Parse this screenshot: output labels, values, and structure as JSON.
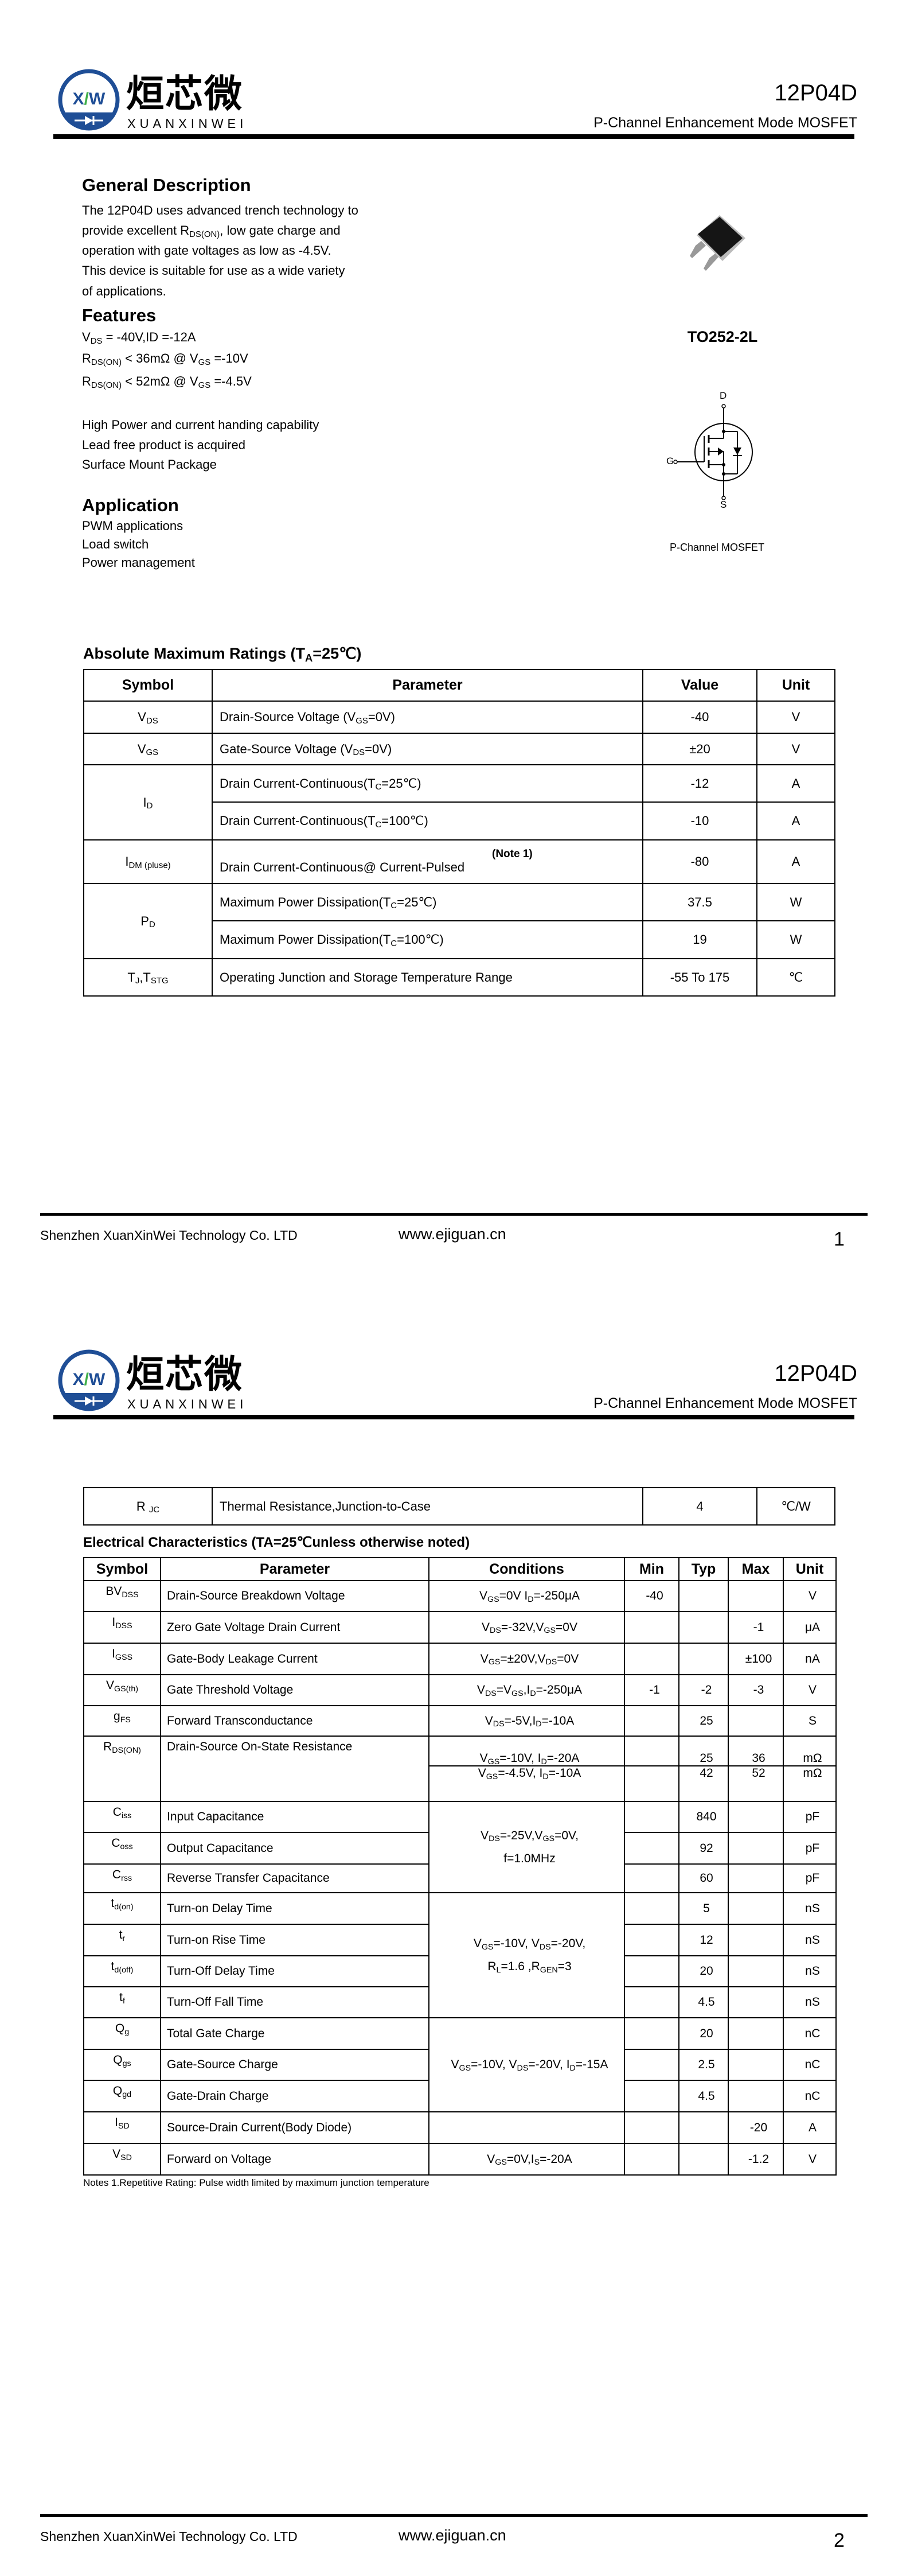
{
  "colors": {
    "brand_blue": "#1f4e96",
    "brand_green": "#3fae49",
    "text": "#000000"
  },
  "header": {
    "logo_cn": "烜芯微",
    "logo_en": "XUANXINWEI",
    "logo_mark": "XW",
    "part_number": "12P04D",
    "subtitle": "P-Channel Enhancement Mode MOSFET"
  },
  "footer": {
    "company": "Shenzhen XuanXinWei Technology Co. LTD",
    "website": "www.ejiguan.cn",
    "page1": "1",
    "page2": "2"
  },
  "general": {
    "title": "General Description",
    "lines": [
      [
        "The  12P04D         uses advanced trench technology to"
      ],
      [
        " provide excellent R",
        {
          "sub": "DS(ON)"
        },
        ", low gate charge and"
      ],
      [
        "operation with gate voltages as low as -4.5V."
      ],
      [
        "This device is suitable for use as a wide variety"
      ],
      [
        "of applications."
      ]
    ]
  },
  "features": {
    "title": "Features",
    "specs": [
      [
        "V",
        {
          "sub": "DS"
        },
        " = -40V,ID =-12A"
      ],
      [
        "R",
        {
          "sub": "DS(ON)"
        },
        " < 36mΩ @ V",
        {
          "sub": "GS"
        },
        " =-10V"
      ],
      [
        "R",
        {
          "sub": "DS(ON)"
        },
        " < 52mΩ @ V",
        {
          "sub": "GS"
        },
        " =-4.5V"
      ]
    ],
    "items": [
      "High Power and current handing capability",
      "Lead free product is acquired",
      "Surface Mount Package"
    ]
  },
  "application": {
    "title": "Application",
    "items": [
      "PWM applications",
      "Load switch",
      "Power management"
    ]
  },
  "package": {
    "name": "TO252-2L",
    "pin_d": "D",
    "pin_g": "G",
    "pin_s": "S",
    "symbol_label": "P-Channel MOSFET"
  },
  "abs_max": {
    "title": [
      "Absolute Maximum Ratings (T",
      {
        "sub": "A"
      },
      "=25℃)"
    ],
    "headers": [
      "Symbol",
      "Parameter",
      "Value",
      "Unit"
    ],
    "rows": [
      {
        "symbol": [
          "V",
          {
            "sub": "DS"
          }
        ],
        "parameter": [
          "Drain-Source Voltage (V",
          {
            "sub": "GS"
          },
          "=0V)"
        ],
        "value": "-40",
        "unit": "V"
      },
      {
        "symbol": [
          "V",
          {
            "sub": "GS"
          }
        ],
        "parameter": [
          "Gate-Source Voltage (V",
          {
            "sub": "DS"
          },
          "=0V)"
        ],
        "value": "±20",
        "unit": "V"
      },
      {
        "symbol": [
          "I",
          {
            "sub": "D"
          }
        ],
        "symbol_rows": 2,
        "parameter": [
          "Drain Current-Continuous(T",
          {
            "sub": "C"
          },
          "=25℃)"
        ],
        "value": "-12",
        "unit": "A"
      },
      {
        "parameter": [
          "Drain Current-Continuous(T",
          {
            "sub": "C"
          },
          "=100℃)"
        ],
        "value": "-10",
        "unit": "A"
      },
      {
        "symbol": [
          "I",
          {
            "sub": "DM (pluse)"
          }
        ],
        "note": "(Note 1)",
        "parameter": [
          "Drain Current-Continuous@ Current-Pulsed"
        ],
        "value": "-80",
        "unit": "A"
      },
      {
        "symbol": [
          "P",
          {
            "sub": "D"
          }
        ],
        "symbol_rows": 2,
        "parameter": [
          "Maximum Power Dissipation(T",
          {
            "sub": "C"
          },
          "=25℃)"
        ],
        "value": "37.5",
        "unit": "W"
      },
      {
        "parameter": [
          "Maximum Power Dissipation(T",
          {
            "sub": "C"
          },
          "=100℃)"
        ],
        "value": "19",
        "unit": "W"
      },
      {
        "symbol": [
          "T",
          {
            "sub": "J"
          },
          ",T",
          {
            "sub": "STG"
          }
        ],
        "parameter": [
          "Operating Junction and Storage Temperature Range"
        ],
        "value": "-55 To 175",
        "unit": "℃"
      }
    ]
  },
  "thermal": {
    "symbol": [
      "R ",
      {
        "sub": " JC"
      }
    ],
    "parameter": [
      "Thermal Resistance,Junction-to-Case"
    ],
    "value": "4",
    "unit": "℃/W"
  },
  "electrical": {
    "title": "Electrical Characteristics (TA=25℃unless otherwise noted)",
    "headers": [
      "Symbol",
      "Parameter",
      "Conditions",
      "Min",
      "Typ",
      "Max",
      "Unit"
    ],
    "rows": [
      {
        "symbol": [
          "BV",
          {
            "sub": "DSS"
          }
        ],
        "parameter": "Drain-Source Breakdown Voltage",
        "conditions": [
          "V",
          {
            "sub": "GS"
          },
          "=0V I",
          {
            "sub": "D"
          },
          "=-250μA"
        ],
        "min": "-40",
        "typ": "",
        "max": "",
        "unit": "V"
      },
      {
        "symbol": [
          "I",
          {
            "sub": "DSS"
          }
        ],
        "parameter": "Zero Gate Voltage Drain Current",
        "conditions": [
          "V",
          {
            "sub": "DS"
          },
          "=-32V,V",
          {
            "sub": "GS"
          },
          "=0V"
        ],
        "min": "",
        "typ": "",
        "max": "-1",
        "unit": "μA"
      },
      {
        "symbol": [
          "I",
          {
            "sub": "GSS"
          }
        ],
        "parameter": "Gate-Body Leakage Current",
        "conditions": [
          "V",
          {
            "sub": "GS"
          },
          "=±20V,V",
          {
            "sub": "DS"
          },
          "=0V"
        ],
        "min": "",
        "typ": "",
        "max": "±100",
        "unit": "nA"
      },
      {
        "symbol": [
          "V",
          {
            "sub": "GS(th)"
          }
        ],
        "parameter": "Gate Threshold Voltage",
        "conditions": [
          "V",
          {
            "sub": "DS"
          },
          "=V",
          {
            "sub": "GS"
          },
          ",I",
          {
            "sub": "D"
          },
          "=-250μA"
        ],
        "min": "-1",
        "typ": "-2",
        "max": "-3",
        "unit": "V"
      },
      {
        "symbol": [
          "g",
          {
            "sub": "FS"
          }
        ],
        "parameter": "Forward Transconductance",
        "conditions": [
          "V",
          {
            "sub": "DS"
          },
          "=-5V,I",
          {
            "sub": "D"
          },
          "=-10A"
        ],
        "min": "",
        "typ": "25",
        "max": "",
        "unit": "S"
      },
      {
        "symbol": [
          "R",
          {
            "sub": "DS(ON)"
          }
        ],
        "parameter": "Drain-Source On-State Resistance",
        "sub_rows": [
          {
            "conditions": [
              "V",
              {
                "sub": "GS"
              },
              "=-10V, I",
              {
                "sub": "D"
              },
              "=-20A"
            ],
            "min": "",
            "typ": "25",
            "max": "36",
            "unit": "mΩ"
          },
          {
            "conditions": [
              "V",
              {
                "sub": "GS"
              },
              "=-4.5V, I",
              {
                "sub": "D"
              },
              "=-10A"
            ],
            "min": "",
            "typ": "42",
            "max": "52",
            "unit": "mΩ"
          }
        ]
      },
      {
        "symbol": [
          "C",
          {
            "sub": "iss"
          }
        ],
        "parameter": "Input Capacitance",
        "conditions": [
          "V",
          {
            "sub": "DS"
          },
          "=-25V,V",
          {
            "sub": "GS"
          },
          "=0V,",
          {
            "br": true
          },
          "f=1.0MHz"
        ],
        "cond_rows": 3,
        "min": "",
        "typ": "840",
        "max": "",
        "unit": "pF"
      },
      {
        "symbol": [
          "C",
          {
            "sub": "oss"
          }
        ],
        "parameter": "Output Capacitance",
        "min": "",
        "typ": "92",
        "max": "",
        "unit": "pF"
      },
      {
        "symbol": [
          "C",
          {
            "sub": "rss"
          }
        ],
        "parameter": "Reverse Transfer Capacitance",
        "min": "",
        "typ": "60",
        "max": "",
        "unit": "pF"
      },
      {
        "symbol": [
          "t",
          {
            "sub": "d(on)"
          }
        ],
        "parameter": "Turn-on Delay Time",
        "conditions": [
          "V",
          {
            "sub": "GS"
          },
          "=-10V, V",
          {
            "sub": "DS"
          },
          "=-20V,",
          {
            "br": true
          },
          "R",
          {
            "sub": "L"
          },
          "=1.6    ,R",
          {
            "sub": "GEN"
          },
          "=3"
        ],
        "cond_rows": 4,
        "min": "",
        "typ": "5",
        "max": "",
        "unit": "nS"
      },
      {
        "symbol": [
          "t",
          {
            "sub": "r"
          }
        ],
        "parameter": "Turn-on Rise Time",
        "min": "",
        "typ": "12",
        "max": "",
        "unit": "nS"
      },
      {
        "symbol": [
          "t",
          {
            "sub": "d(off)"
          }
        ],
        "parameter": "Turn-Off Delay Time",
        "min": "",
        "typ": "20",
        "max": "",
        "unit": "nS"
      },
      {
        "symbol": [
          "t",
          {
            "sub": "f"
          }
        ],
        "parameter": "Turn-Off Fall Time",
        "min": "",
        "typ": "4.5",
        "max": "",
        "unit": "nS"
      },
      {
        "symbol": [
          "Q",
          {
            "sub": "g"
          }
        ],
        "parameter": "Total Gate Charge",
        "conditions": [
          "V",
          {
            "sub": "GS"
          },
          "=-10V, V",
          {
            "sub": "DS"
          },
          "=-20V, I",
          {
            "sub": "D"
          },
          "=-15A"
        ],
        "cond_rows": 3,
        "min": "",
        "typ": "20",
        "max": "",
        "unit": "nC"
      },
      {
        "symbol": [
          "Q",
          {
            "sub": "gs"
          }
        ],
        "parameter": "Gate-Source Charge",
        "min": "",
        "typ": "2.5",
        "max": "",
        "unit": "nC"
      },
      {
        "symbol": [
          "Q",
          {
            "sub": "gd"
          }
        ],
        "parameter": "Gate-Drain Charge",
        "min": "",
        "typ": "4.5",
        "max": "",
        "unit": "nC"
      },
      {
        "symbol": [
          "I",
          {
            "sub": "SD"
          }
        ],
        "parameter": "Source-Drain Current(Body Diode)",
        "conditions": [
          ""
        ],
        "min": "",
        "typ": "",
        "max": "-20",
        "unit": "A"
      },
      {
        "symbol": [
          "V",
          {
            "sub": "SD"
          }
        ],
        "parameter": "Forward on Voltage",
        "conditions": [
          "V",
          {
            "sub": "GS"
          },
          "=0V,I",
          {
            "sub": "S"
          },
          "=-20A"
        ],
        "min": "",
        "typ": "",
        "max": "-1.2",
        "unit": "V"
      }
    ],
    "notes": "Notes 1.Repetitive Rating: Pulse width limited by maximum junction temperature"
  }
}
